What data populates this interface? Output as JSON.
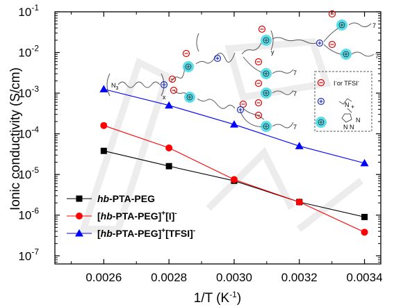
{
  "chart_data": {
    "type": "line",
    "xlabel": "1/T (K",
    "xlabel_sup": "-1",
    "xlabel_end": ")",
    "ylabel": "Ionic conductivity (S/cm)",
    "y_scale": "log",
    "xlim": [
      0.00245,
      0.00345
    ],
    "ylim_exp": [
      -7.2,
      -1
    ],
    "x_ticks": [
      0.0026,
      0.0028,
      0.003,
      0.0032,
      0.0034
    ],
    "x_tick_labels": [
      "0.0026",
      "0.0028",
      "0.0030",
      "0.0032",
      "0.0034"
    ],
    "y_tick_exps": [
      -7,
      -6,
      -5,
      -4,
      -3,
      -2,
      -1
    ],
    "y_tick_base": "10",
    "y_tick_sups": [
      "-7",
      "-6",
      "-5",
      "-4",
      "-3",
      "-2",
      "-1"
    ],
    "legend_position": "bottom-left",
    "series": [
      {
        "legend": [
          "hb",
          "-PTA-PEG"
        ],
        "color": "#000000",
        "marker": "square",
        "x": [
          0.0026,
          0.0028,
          0.003,
          0.0032,
          0.0034
        ],
        "y": [
          3.8e-05,
          1.6e-05,
          7e-06,
          2.1e-06,
          9e-07
        ]
      },
      {
        "legend": [
          "[",
          "hb",
          "-PTA-PEG]",
          "+",
          "[I]",
          "-"
        ],
        "color": "#ff0000",
        "marker": "circle",
        "x": [
          0.0026,
          0.0028,
          0.003,
          0.0032,
          0.0034
        ],
        "y": [
          0.00016,
          4.5e-05,
          7.5e-06,
          2.1e-06,
          3.8e-07
        ]
      },
      {
        "legend": [
          "[",
          "hb",
          "-PTA-PEG]",
          "+",
          "[TFSI]",
          "-"
        ],
        "color": "#0000ff",
        "marker": "triangle",
        "x": [
          0.0026,
          0.0028,
          0.003,
          0.0032,
          0.0034
        ],
        "y": [
          0.00125,
          0.0005,
          0.00017,
          5e-05,
          1.9e-05
        ]
      }
    ],
    "inset": {
      "end_group": "N",
      "end_group_sub": "3",
      "subscript_x": "x",
      "subscript_y": "y",
      "subscript_7": "7",
      "key_anion": "I",
      "key_anion_sup": "-",
      "key_or": "or TFSI",
      "key_or_sup": "-",
      "key_n": "N",
      "key_plus": "+",
      "key_triazole": "N",
      "key_n2": "N",
      "key_n3": "N",
      "colors": {
        "anion": "#e00000",
        "cation": "#2030c0",
        "triazolium_ring": "#40d8e8"
      }
    }
  }
}
